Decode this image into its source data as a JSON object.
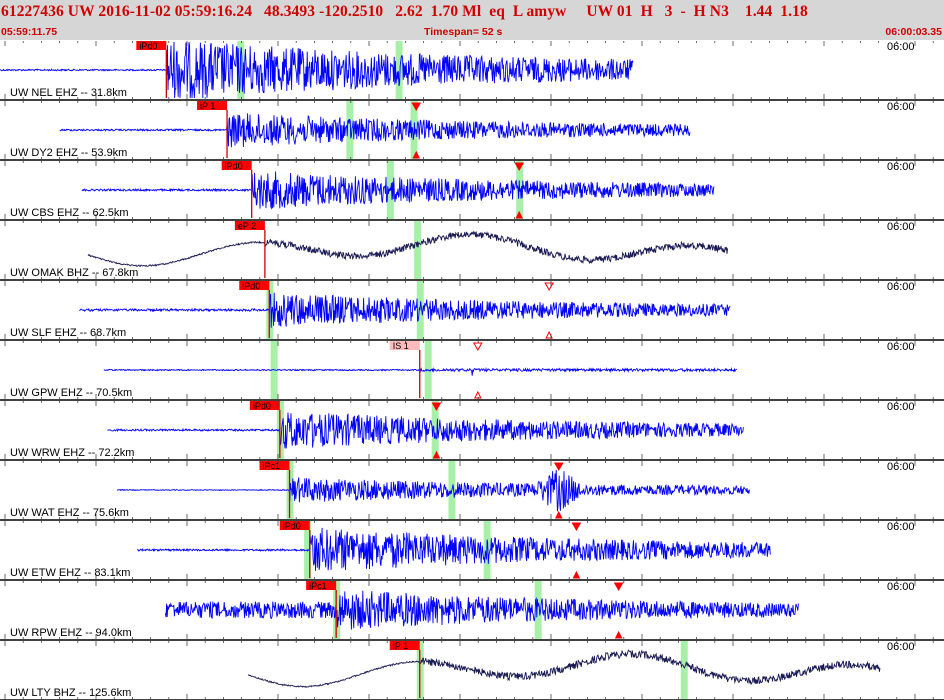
{
  "header": {
    "title": "61227436 UW 2016-11-02 05:59:16.24   48.3493 -120.2510   2.62  1.70 Ml  eq  L amyw     UW 01  H   3  -  H N3    1.44  1.18",
    "start_time": "05:59:11.75",
    "timespan": "Timespan=  52 s",
    "end_time": "06:00:03.35"
  },
  "colors": {
    "trace_short": "#0000ff",
    "trace_broadband": "#1a1a55",
    "pick_flag": "#ff0000",
    "pick_flag_s": "#ffbbbb",
    "green_marker": "#a8f0a8",
    "tick": "#444444"
  },
  "traces": [
    {
      "label": "UW NEL EHZ -- 31.8km",
      "time": "06:00",
      "pick": "iPd0",
      "pick_type": "P",
      "p_pos": 0.189,
      "start": 0.0,
      "end": 0.72,
      "amp": 1.0,
      "kind": "short",
      "greens": [
        0.273,
        0.453
      ],
      "marker": null,
      "pre": 0.03
    },
    {
      "label": "UW DY2 EHZ -- 53.9km",
      "time": "06:00",
      "pick": "iP 1",
      "pick_type": "P",
      "p_pos": 0.258,
      "start": 0.068,
      "end": 0.785,
      "amp": 0.55,
      "kind": "short",
      "greens": [
        0.397,
        0.47
      ],
      "marker": 0.473,
      "pre": 0.06
    },
    {
      "label": "UW CBS EHZ -- 62.5km",
      "time": "06:00",
      "pick": "iPd0",
      "pick_type": "P",
      "p_pos": 0.286,
      "start": 0.093,
      "end": 0.812,
      "amp": 0.62,
      "kind": "short",
      "greens": [
        0.443,
        0.59
      ],
      "marker": 0.59,
      "pre": 0.06
    },
    {
      "label": "UW OMAK BHZ -- 67.8km",
      "time": "06:00",
      "pick": "eP 2",
      "pick_type": "P",
      "p_pos": 0.301,
      "start": 0.1,
      "end": 0.827,
      "amp": 0.7,
      "kind": "broad",
      "greens": [
        0.474
      ],
      "marker": null,
      "pre": 0.0
    },
    {
      "label": "UW SLF EHZ -- 68.7km",
      "time": "06:00",
      "pick": "iPd0",
      "pick_type": "P",
      "p_pos": 0.306,
      "start": 0.09,
      "end": 0.83,
      "amp": 0.55,
      "kind": "short",
      "greens": [
        0.306,
        0.477
      ],
      "marker": 0.624,
      "pre": 0.08
    },
    {
      "label": "UW GPW EHZ -- 70.5km",
      "time": "06:00",
      "pick": "IS 1",
      "pick_type": "S",
      "p_pos": 0.477,
      "start": 0.118,
      "end": 0.838,
      "amp": 0.45,
      "kind": "spiky",
      "greens": [
        0.311,
        0.486
      ],
      "marker": 0.543,
      "pre": 0.08
    },
    {
      "label": "UW WRW EHZ -- 72.2km",
      "time": "06:00",
      "pick": "iPd0",
      "pick_type": "P",
      "p_pos": 0.318,
      "start": 0.122,
      "end": 0.845,
      "amp": 0.6,
      "kind": "short",
      "greens": [
        0.318,
        0.494
      ],
      "marker": 0.496,
      "pre": 0.06
    },
    {
      "label": "UW WAT EHZ -- 75.6km",
      "time": "06:00",
      "pick": "iPc1",
      "pick_type": "P",
      "p_pos": 0.329,
      "start": 0.133,
      "end": 0.852,
      "amp": 0.4,
      "kind": "wat",
      "greens": [
        0.329,
        0.513
      ],
      "marker": 0.635,
      "pre": 0.04
    },
    {
      "label": "UW ETW EHZ -- 83.1km",
      "time": "06:00",
      "pick": "iPd0",
      "pick_type": "P",
      "p_pos": 0.352,
      "start": 0.156,
      "end": 0.876,
      "amp": 0.72,
      "kind": "short",
      "greens": [
        0.349,
        0.553
      ],
      "marker": 0.655,
      "pre": 0.05
    },
    {
      "label": "UW RPW EHZ -- 94.0km",
      "time": "06:00",
      "pick": "iPc1",
      "pick_type": "P",
      "p_pos": 0.382,
      "start": 0.188,
      "end": 0.908,
      "amp": 0.65,
      "kind": "short",
      "greens": [
        0.382,
        0.611
      ],
      "marker": 0.703,
      "pre": 0.5
    },
    {
      "label": "UW LTY BHZ -- 125.6km",
      "time": "06:00",
      "pick": "iP 1",
      "pick_type": "P",
      "p_pos": 0.477,
      "start": 0.282,
      "end": 1.0,
      "amp": 0.75,
      "kind": "broad2",
      "greens": [
        0.477,
        0.777
      ],
      "marker": null,
      "pre": 0.0
    }
  ]
}
